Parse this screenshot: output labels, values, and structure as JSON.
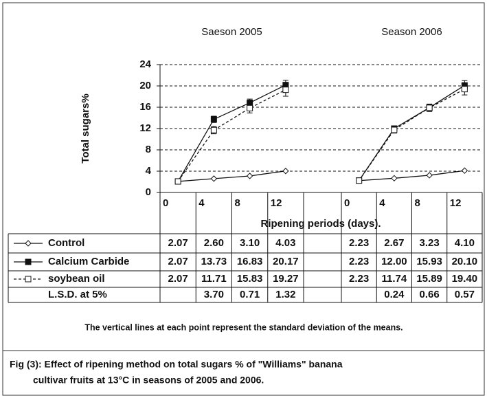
{
  "chart_data": {
    "type": "line",
    "ylabel": "Total sugars%",
    "xlabel": "Ripening periods (days).",
    "ylim": [
      0,
      24
    ],
    "yticks": [
      0,
      4,
      8,
      12,
      16,
      20,
      24
    ],
    "grid": true,
    "panels": [
      {
        "title": "Saeson 2005",
        "x": [
          2,
          6,
          10,
          14
        ],
        "xlim": [
          0,
          16
        ],
        "xticks": [
          0,
          4,
          8,
          12
        ]
      },
      {
        "title": "Season 2006",
        "x": [
          2,
          6,
          10,
          14
        ],
        "xlim": [
          0,
          16
        ],
        "xticks": [
          0,
          4,
          8,
          12
        ]
      }
    ],
    "series": [
      {
        "name": "Control",
        "color": "#111111",
        "marker": "diamond",
        "dash": false,
        "values": [
          [
            2.07,
            2.6,
            3.1,
            4.03
          ],
          [
            2.23,
            2.67,
            3.23,
            4.1
          ]
        ],
        "value_labels": [
          [
            "2.07",
            "2.60",
            "3.10",
            "4.03"
          ],
          [
            "2.23",
            "2.67",
            "3.23",
            "4.10"
          ]
        ]
      },
      {
        "name": "Calcium Carbide",
        "color": "#111111",
        "marker": "filled-square",
        "dash": false,
        "values": [
          [
            2.07,
            13.73,
            16.83,
            20.17
          ],
          [
            2.23,
            12.0,
            15.93,
            20.1
          ]
        ],
        "value_labels": [
          [
            "2.07",
            "13.73",
            "16.83",
            "20.17"
          ],
          [
            "2.23",
            "12.00",
            "15.93",
            "20.10"
          ]
        ],
        "errors": [
          [
            null,
            0.6,
            0.7,
            0.9
          ],
          [
            null,
            0.5,
            0.6,
            0.9
          ]
        ]
      },
      {
        "name": "soybean oil",
        "color": "#111111",
        "marker": "open-square",
        "dash": true,
        "values": [
          [
            2.07,
            11.71,
            15.83,
            19.27
          ],
          [
            2.23,
            11.74,
            15.89,
            19.4
          ]
        ],
        "value_labels": [
          [
            "2.07",
            "11.71",
            "15.83",
            "19.27"
          ],
          [
            "2.23",
            "11.74",
            "15.89",
            "19.40"
          ]
        ],
        "errors": [
          [
            null,
            0.7,
            0.9,
            1.2
          ],
          [
            null,
            0.6,
            0.7,
            1.1
          ]
        ]
      }
    ],
    "lsd": {
      "name": "L.S.D. at 5%",
      "values": [
        [
          null,
          3.7,
          0.71,
          1.32
        ],
        [
          null,
          0.24,
          0.66,
          0.57
        ]
      ],
      "value_labels": [
        [
          null,
          "3.70",
          "0.71",
          "1.32"
        ],
        [
          null,
          "0.24",
          "0.66",
          "0.57"
        ]
      ]
    },
    "note": "The vertical lines at each point represent the standard deviation of the means.",
    "caption_line1": "Fig (3): Effect of ripening method on total sugars % of  \"Williams\" banana",
    "caption_line2": "cultivar fruits at 13°C in seasons of 2005 and 2006."
  }
}
